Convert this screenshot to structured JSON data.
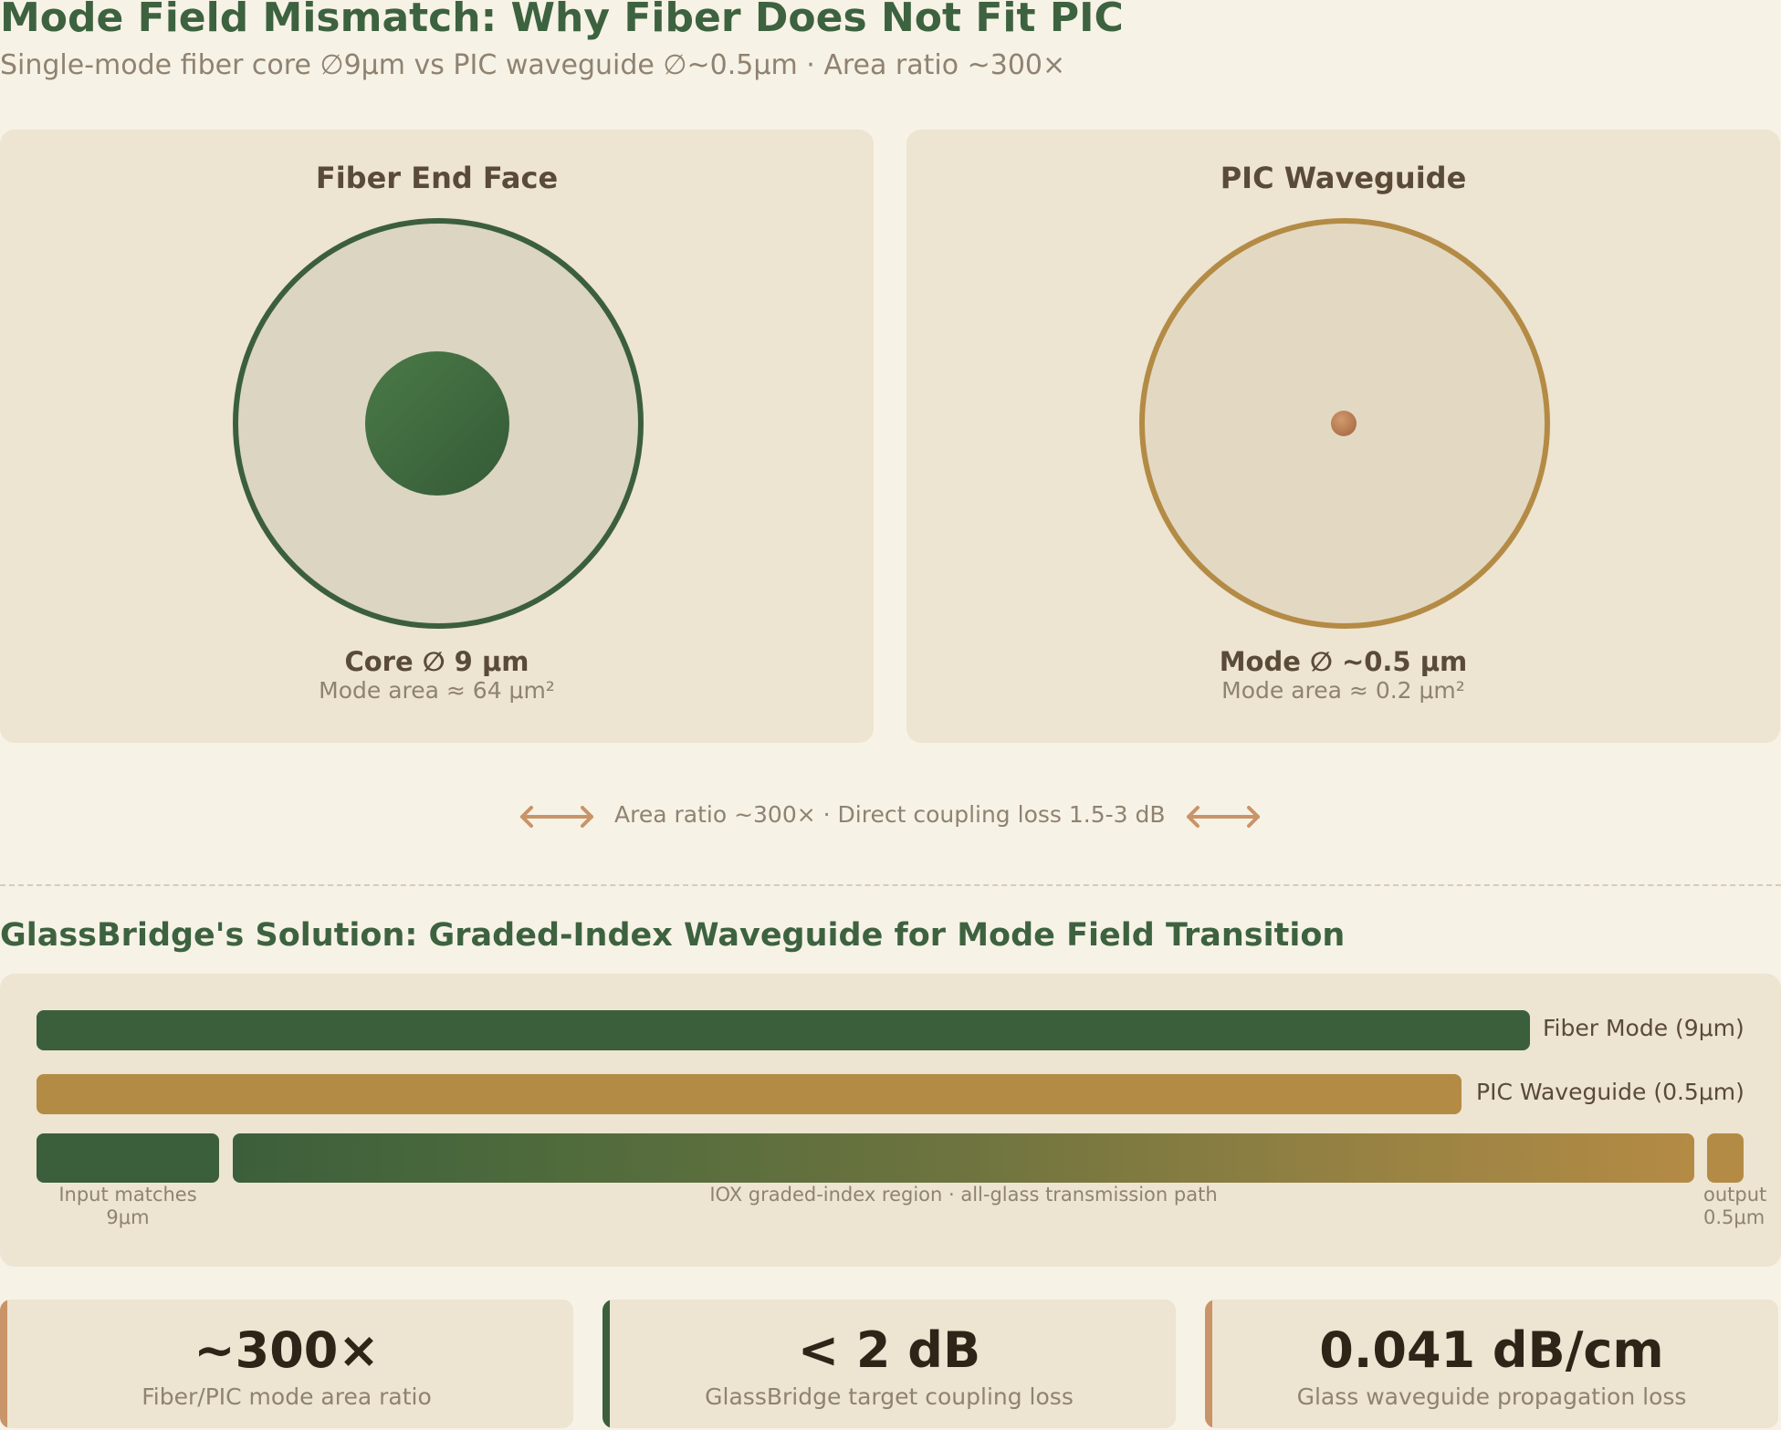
{
  "header": {
    "title": "Mode Field Mismatch: Why Fiber Does Not Fit PIC",
    "subtitle": "Single-mode fiber core ∅9μm vs PIC waveguide ∅~0.5μm · Area ratio ~300×"
  },
  "fiber_panel": {
    "title": "Fiber End Face",
    "label": "Core ∅ 9 μm",
    "sub": "Mode area ≈ 64 μm²"
  },
  "pic_panel": {
    "title": "PIC Waveguide",
    "label": "Mode ∅ ~0.5 μm",
    "sub": "Mode area ≈ 0.2 μm²"
  },
  "ratio_row": {
    "text": "Area ratio ~300× · Direct coupling loss 1.5-3 dB"
  },
  "solution": {
    "title": "GlassBridge's Solution: Graded-Index Waveguide for Mode Field Transition",
    "fiber_bar_label": "Fiber Mode (9μm)",
    "pic_bar_label": "PIC Waveguide (0.5μm)",
    "input_label": "Input matches 9μm",
    "region_label": "IOX graded-index region · all-glass transmission path",
    "output_label": "output 0.5μm"
  },
  "metrics": [
    {
      "value": "~300×",
      "label": "Fiber/PIC mode area ratio",
      "accent": "#c99468"
    },
    {
      "value": "< 2 dB",
      "label": "GlassBridge target coupling loss",
      "accent": "#3c5f3b"
    },
    {
      "value": "0.041 dB/cm",
      "label": "Glass waveguide propagation loss",
      "accent": "#c99468"
    }
  ],
  "colors": {
    "fiber_green": "#3c5f3b",
    "pic_gold": "#b48b45",
    "copper": "#c99468"
  }
}
